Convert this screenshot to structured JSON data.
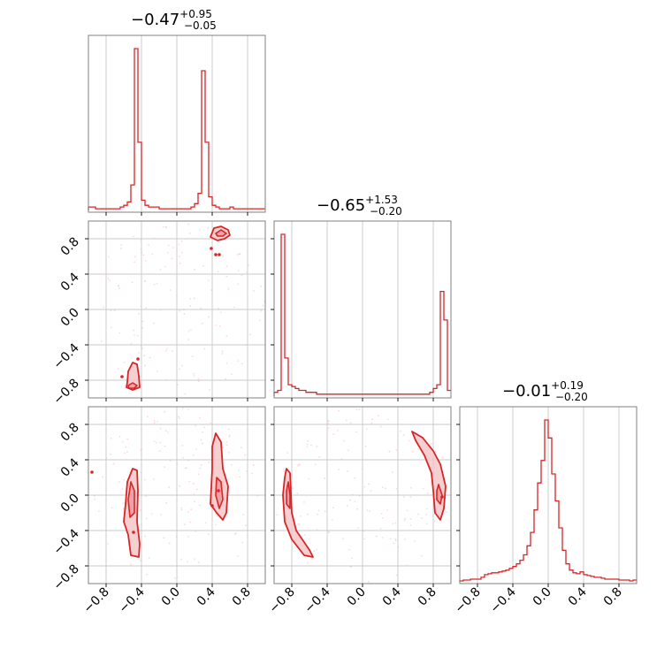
{
  "chart_data": {
    "type": "corner",
    "color": "#d62728",
    "fill_color": "#f4c7c8",
    "point_color": "#f7b9bb",
    "axis_range": [
      -1.0,
      1.0
    ],
    "ticks": [
      "-0.8",
      "-0.4",
      "0.0",
      "0.4",
      "0.8"
    ],
    "tick_values": [
      -0.8,
      -0.4,
      0.0,
      0.4,
      0.8
    ],
    "grid": true,
    "parameters": [
      {
        "median": "−0.47",
        "plus": "+0.95",
        "minus": "−0.05"
      },
      {
        "median": "−0.65",
        "plus": "+1.53",
        "minus": "−0.20"
      },
      {
        "median": "−0.01",
        "plus": "+0.19",
        "minus": "−0.20"
      }
    ],
    "histograms": [
      {
        "edges_start": -1.0,
        "bin_width": 0.04,
        "counts": [
          2,
          2,
          1,
          1,
          1,
          1,
          1,
          1,
          1,
          2,
          3,
          5,
          15,
          95,
          40,
          6,
          3,
          2,
          2,
          2,
          1,
          1,
          1,
          1,
          1,
          1,
          1,
          1,
          1,
          2,
          4,
          10,
          82,
          40,
          8,
          3,
          2,
          1,
          1,
          1,
          2,
          1,
          1,
          1,
          1,
          1,
          1,
          1,
          1,
          1
        ]
      },
      {
        "edges_start": -1.0,
        "bin_width": 0.04,
        "counts": [
          2,
          3,
          85,
          20,
          6,
          5,
          4,
          3,
          3,
          2,
          2,
          2,
          1,
          1,
          1,
          1,
          1,
          1,
          1,
          1,
          1,
          1,
          1,
          1,
          1,
          1,
          1,
          1,
          1,
          1,
          1,
          1,
          1,
          1,
          1,
          1,
          1,
          1,
          1,
          1,
          1,
          1,
          1,
          1,
          2,
          4,
          6,
          55,
          40,
          3
        ]
      },
      {
        "edges_start": -1.0,
        "bin_width": 0.04,
        "counts": [
          1,
          2,
          2,
          3,
          3,
          3,
          5,
          8,
          9,
          10,
          10,
          11,
          12,
          13,
          15,
          17,
          20,
          24,
          30,
          40,
          55,
          80,
          110,
          135,
          180,
          160,
          120,
          90,
          60,
          35,
          20,
          13,
          10,
          9,
          11,
          8,
          7,
          6,
          5,
          5,
          4,
          3,
          3,
          3,
          3,
          2,
          2,
          2,
          1,
          2
        ]
      }
    ],
    "contours": [
      {
        "row": 1,
        "col": 0,
        "regions": [
          {
            "outer": [
              [
                0.38,
                0.82
              ],
              [
                0.42,
                0.92
              ],
              [
                0.5,
                0.94
              ],
              [
                0.58,
                0.9
              ],
              [
                0.6,
                0.84
              ],
              [
                0.54,
                0.8
              ],
              [
                0.46,
                0.78
              ]
            ],
            "inner": [
              [
                0.44,
                0.86
              ],
              [
                0.5,
                0.9
              ],
              [
                0.56,
                0.86
              ],
              [
                0.52,
                0.83
              ],
              [
                0.46,
                0.83
              ]
            ]
          },
          {
            "outer": [
              [
                -0.56,
                -0.82
              ],
              [
                -0.55,
                -0.7
              ],
              [
                -0.5,
                -0.6
              ],
              [
                -0.45,
                -0.62
              ],
              [
                -0.43,
                -0.75
              ],
              [
                -0.42,
                -0.88
              ],
              [
                -0.5,
                -0.91
              ],
              [
                -0.57,
                -0.88
              ]
            ],
            "inner": [
              [
                -0.55,
                -0.86
              ],
              [
                -0.5,
                -0.83
              ],
              [
                -0.45,
                -0.86
              ],
              [
                -0.48,
                -0.89
              ],
              [
                -0.54,
                -0.89
              ]
            ]
          }
        ],
        "points": [
          [
            0.44,
            0.62
          ],
          [
            0.48,
            0.62
          ],
          [
            0.39,
            0.69
          ],
          [
            -0.62,
            -0.76
          ],
          [
            -0.44,
            -0.56
          ]
        ]
      },
      {
        "row": 2,
        "col": 0,
        "regions": [
          {
            "outer": [
              [
                -0.58,
                -0.1
              ],
              [
                -0.56,
                0.15
              ],
              [
                -0.5,
                0.3
              ],
              [
                -0.45,
                0.28
              ],
              [
                -0.44,
                0.05
              ],
              [
                -0.45,
                -0.3
              ],
              [
                -0.42,
                -0.55
              ],
              [
                -0.43,
                -0.7
              ],
              [
                -0.52,
                -0.68
              ],
              [
                -0.55,
                -0.45
              ],
              [
                -0.6,
                -0.3
              ]
            ],
            "inner": [
              [
                -0.55,
                -0.05
              ],
              [
                -0.52,
                0.15
              ],
              [
                -0.48,
                0.05
              ],
              [
                -0.48,
                -0.2
              ],
              [
                -0.53,
                -0.25
              ]
            ]
          },
          {
            "outer": [
              [
                0.38,
                -0.1
              ],
              [
                0.4,
                0.3
              ],
              [
                0.4,
                0.55
              ],
              [
                0.44,
                0.7
              ],
              [
                0.5,
                0.6
              ],
              [
                0.52,
                0.3
              ],
              [
                0.58,
                0.1
              ],
              [
                0.56,
                -0.2
              ],
              [
                0.52,
                -0.28
              ],
              [
                0.45,
                -0.2
              ]
            ],
            "inner": [
              [
                0.44,
                0.0
              ],
              [
                0.45,
                0.2
              ],
              [
                0.5,
                0.15
              ],
              [
                0.52,
                -0.05
              ],
              [
                0.48,
                -0.15
              ]
            ]
          }
        ],
        "points": [
          [
            -0.96,
            0.26
          ],
          [
            0.4,
            -0.12
          ],
          [
            -0.49,
            -0.42
          ],
          [
            0.47,
            0.05
          ]
        ]
      },
      {
        "row": 2,
        "col": 1,
        "regions": [
          {
            "outer": [
              [
                -0.88,
                0.2
              ],
              [
                -0.86,
                0.3
              ],
              [
                -0.82,
                0.25
              ],
              [
                -0.8,
                -0.2
              ],
              [
                -0.75,
                -0.4
              ],
              [
                -0.6,
                -0.62
              ],
              [
                -0.56,
                -0.7
              ],
              [
                -0.66,
                -0.68
              ],
              [
                -0.8,
                -0.5
              ],
              [
                -0.88,
                -0.3
              ],
              [
                -0.9,
                0.0
              ]
            ],
            "inner": [
              [
                -0.86,
                0.05
              ],
              [
                -0.84,
                0.15
              ],
              [
                -0.82,
                0.0
              ],
              [
                -0.82,
                -0.15
              ],
              [
                -0.86,
                -0.1
              ]
            ]
          },
          {
            "outer": [
              [
                0.56,
                0.72
              ],
              [
                0.68,
                0.65
              ],
              [
                0.8,
                0.5
              ],
              [
                0.88,
                0.35
              ],
              [
                0.94,
                0.1
              ],
              [
                0.92,
                -0.15
              ],
              [
                0.88,
                -0.28
              ],
              [
                0.82,
                -0.2
              ],
              [
                0.8,
                0.05
              ],
              [
                0.78,
                0.25
              ],
              [
                0.7,
                0.45
              ],
              [
                0.6,
                0.62
              ]
            ],
            "inner": [
              [
                0.84,
                0.05
              ],
              [
                0.86,
                0.12
              ],
              [
                0.9,
                0.0
              ],
              [
                0.88,
                -0.1
              ],
              [
                0.84,
                -0.05
              ]
            ]
          }
        ],
        "points": [
          [
            0.9,
            -0.02
          ]
        ]
      }
    ]
  }
}
